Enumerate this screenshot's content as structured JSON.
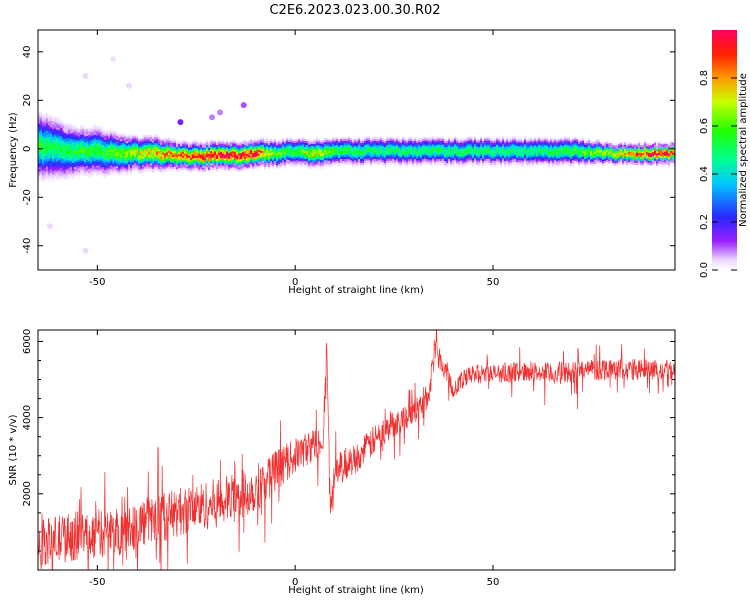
{
  "figure": {
    "title": "C2E6.2023.023.00.30.R02"
  },
  "chart_data": [
    {
      "type": "heatmap",
      "xlabel": "Height of straight line (km)",
      "ylabel": "Frequency (Hz)",
      "xlim": [
        -65,
        96
      ],
      "ylim": [
        -50,
        49
      ],
      "xticks": [
        -50,
        0,
        50
      ],
      "yticks": [
        -40,
        -20,
        0,
        20,
        40
      ],
      "colorbar": {
        "label": "Normalized spectral amplitude",
        "range": [
          0,
          1
        ],
        "ticks": [
          "0.0",
          "0.2",
          "0.4",
          "0.6",
          "0.8"
        ]
      },
      "ridge": {
        "description_values_x": [
          -65,
          -60,
          -55,
          -50,
          -45,
          -40,
          -35,
          -30,
          -25,
          -20,
          -15,
          -10,
          -5,
          0,
          5,
          10,
          20,
          30,
          40,
          50,
          60,
          70,
          80,
          90,
          96
        ],
        "center_hz": [
          1,
          0,
          -1,
          -1,
          -2,
          -2,
          -2,
          -3,
          -3,
          -3,
          -3,
          -2,
          -2,
          -1,
          -2,
          -1,
          -1,
          -1,
          -1,
          -1,
          -1,
          -1,
          -2,
          -2,
          -2
        ],
        "half_width_hz": [
          10,
          9,
          7,
          7,
          6,
          5,
          5,
          4,
          4,
          4,
          4,
          4,
          4,
          4,
          4,
          4,
          4,
          4,
          4,
          4,
          4,
          4,
          3,
          3,
          3
        ],
        "amplitude": [
          0.55,
          0.5,
          0.55,
          0.55,
          0.6,
          0.7,
          0.75,
          0.85,
          0.9,
          0.95,
          0.95,
          0.95,
          0.6,
          0.55,
          0.75,
          0.55,
          0.5,
          0.5,
          0.5,
          0.5,
          0.5,
          0.55,
          0.7,
          0.95,
          0.95
        ]
      },
      "outliers": [
        {
          "x": -29,
          "y": 11,
          "amplitude": 0.15
        },
        {
          "x": -21,
          "y": 13,
          "amplitude": 0.08
        },
        {
          "x": -19,
          "y": 15,
          "amplitude": 0.08
        },
        {
          "x": -13,
          "y": 18,
          "amplitude": 0.1
        },
        {
          "x": -58,
          "y": 8,
          "amplitude": 0.05
        },
        {
          "x": -62,
          "y": -32,
          "amplitude": 0.04
        },
        {
          "x": -53,
          "y": -42,
          "amplitude": 0.04
        },
        {
          "x": -53,
          "y": 30,
          "amplitude": 0.04
        },
        {
          "x": -42,
          "y": 26,
          "amplitude": 0.04
        },
        {
          "x": -46,
          "y": 37,
          "amplitude": 0.03
        }
      ]
    },
    {
      "type": "line",
      "xlabel": "Height of straight line (km)",
      "ylabel": "SNR (10 * v/v)",
      "xlim": [
        -65,
        96
      ],
      "ylim": [
        0,
        6300
      ],
      "xticks": [
        -50,
        0,
        50
      ],
      "yticks": [
        2000,
        4000,
        6000
      ],
      "line_color": "#f03030",
      "series": [
        {
          "x": [
            -65,
            -60,
            -55,
            -50,
            -45,
            -40,
            -35,
            -30,
            -25,
            -20,
            -15,
            -10,
            -5,
            0,
            5,
            7,
            8,
            9,
            10,
            15,
            20,
            25,
            30,
            34,
            35,
            40,
            45,
            50,
            55,
            60,
            65,
            70,
            75,
            80,
            85,
            90,
            96
          ],
          "values": [
            700,
            800,
            900,
            950,
            1000,
            1200,
            1350,
            1500,
            1650,
            1750,
            1900,
            2150,
            2600,
            3000,
            3300,
            3500,
            5800,
            1500,
            2600,
            2900,
            3400,
            3850,
            4150,
            4600,
            5900,
            4800,
            5150,
            5150,
            5200,
            5200,
            5150,
            5200,
            5250,
            5300,
            5250,
            5250,
            5300
          ],
          "noise_amplitude": [
            600,
            650,
            650,
            650,
            650,
            650,
            650,
            650,
            650,
            650,
            650,
            650,
            550,
            450,
            450,
            400,
            400,
            400,
            450,
            400,
            400,
            350,
            350,
            350,
            350,
            300,
            250,
            250,
            250,
            250,
            300,
            300,
            300,
            300,
            300,
            300,
            300
          ]
        }
      ]
    }
  ]
}
